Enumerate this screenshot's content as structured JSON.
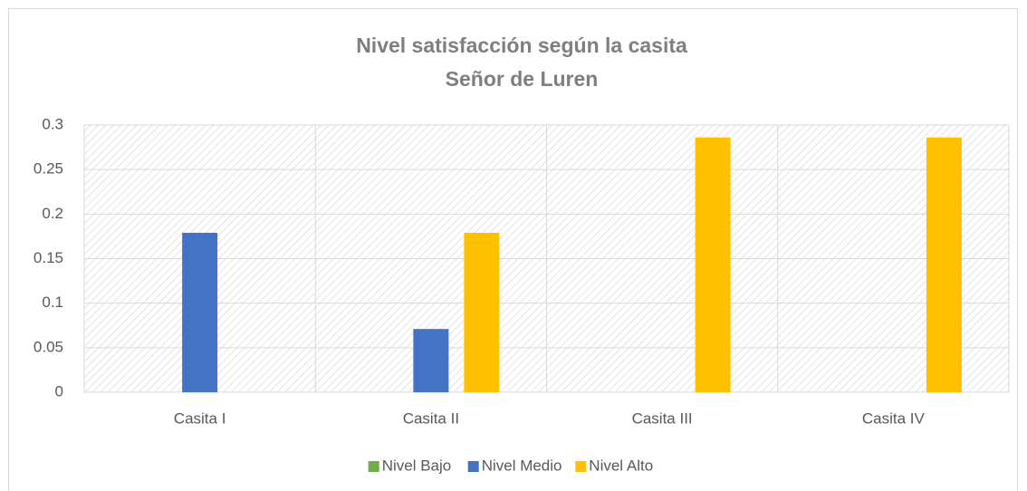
{
  "chart_data": {
    "type": "bar",
    "title": "Nivel satisfacción según la casita",
    "subtitle": "Señor de Luren",
    "categories": [
      "Casita I",
      "Casita II",
      "Casita III",
      "Casita IV"
    ],
    "series": [
      {
        "name": "Nivel Bajo",
        "color": "#70ad47",
        "values": [
          0,
          0,
          0,
          0
        ]
      },
      {
        "name": "Nivel Medio",
        "color": "#4472c4",
        "values": [
          0.179,
          0.071,
          0,
          0
        ]
      },
      {
        "name": "Nivel Alto",
        "color": "#ffc000",
        "values": [
          0,
          0.179,
          0.286,
          0.286
        ]
      }
    ],
    "ylim": [
      0,
      0.3
    ],
    "yticks": [
      0,
      0.05,
      0.1,
      0.15,
      0.2,
      0.25,
      0.3
    ],
    "grid": true,
    "legend": "bottom"
  }
}
